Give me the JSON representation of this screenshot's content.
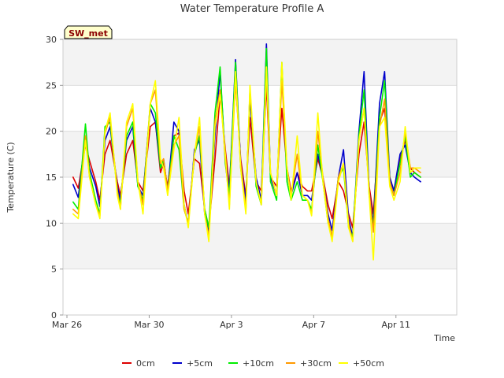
{
  "chart_data": {
    "type": "line",
    "title": "Water Temperature Profile A",
    "xlabel": "Time",
    "ylabel": "Temperature (C)",
    "badge": "SW_met",
    "x_domain_days": [
      0,
      18
    ],
    "x_ticks": [
      {
        "label": "Mar 26",
        "day": 0
      },
      {
        "label": "Mar 30",
        "day": 4
      },
      {
        "label": "Apr 3",
        "day": 8
      },
      {
        "label": "Apr 7",
        "day": 12
      },
      {
        "label": "Apr 11",
        "day": 16
      }
    ],
    "y_ticks": [
      0,
      5,
      10,
      15,
      20,
      25,
      30
    ],
    "ylim": [
      0,
      30
    ],
    "grid": "horizontal bands",
    "legend_position": "bottom",
    "series": [
      {
        "name": "0cm",
        "color": "#dd0000",
        "x": [
          0.3,
          0.55,
          0.9,
          1.1,
          1.4,
          1.6,
          1.85,
          2.1,
          2.45,
          2.6,
          2.9,
          3.2,
          3.45,
          3.7,
          4.05,
          4.3,
          4.55,
          4.7,
          4.9,
          5.2,
          5.45,
          5.7,
          5.9,
          6.2,
          6.45,
          6.7,
          6.9,
          7.2,
          7.45,
          7.7,
          7.9,
          8.2,
          8.45,
          8.7,
          8.9,
          9.2,
          9.45,
          9.7,
          9.9,
          10.2,
          10.45,
          10.7,
          10.9,
          11.2,
          11.45,
          11.7,
          11.9,
          12.2,
          12.45,
          12.7,
          12.9,
          13.2,
          13.45,
          13.7,
          13.9,
          14.2,
          14.45,
          14.7,
          14.9,
          15.2,
          15.45,
          15.7,
          15.9,
          16.2,
          16.45,
          16.7,
          16.9,
          17.2
        ],
        "y": [
          15.0,
          13.8,
          18.5,
          16.8,
          14.5,
          12.5,
          17.5,
          19.0,
          14.5,
          13.0,
          17.5,
          19.0,
          14.5,
          13.5,
          20.5,
          21.0,
          15.5,
          16.5,
          14.0,
          19.5,
          19.8,
          13.5,
          11.0,
          17.0,
          16.5,
          11.5,
          9.5,
          17.0,
          24.0,
          18.0,
          14.0,
          25.5,
          17.0,
          13.0,
          21.5,
          14.5,
          13.5,
          25.0,
          15.0,
          14.0,
          22.5,
          16.0,
          13.5,
          15.5,
          14.0,
          13.5,
          13.5,
          17.0,
          15.0,
          12.0,
          10.5,
          14.5,
          13.5,
          11.0,
          9.5,
          17.5,
          21.0,
          14.0,
          11.0,
          21.0,
          22.5,
          15.0,
          13.5,
          17.0,
          19.0,
          16.0,
          15.5,
          15.0
        ]
      },
      {
        "name": "+5cm",
        "color": "#0000cc",
        "x": [
          0.3,
          0.55,
          0.9,
          1.1,
          1.4,
          1.6,
          1.85,
          2.1,
          2.45,
          2.6,
          2.9,
          3.2,
          3.45,
          3.7,
          4.05,
          4.3,
          4.55,
          4.7,
          4.9,
          5.2,
          5.45,
          5.7,
          5.9,
          6.2,
          6.45,
          6.7,
          6.9,
          7.2,
          7.45,
          7.7,
          7.9,
          8.2,
          8.45,
          8.7,
          8.9,
          9.2,
          9.45,
          9.7,
          9.9,
          10.2,
          10.45,
          10.7,
          10.9,
          11.2,
          11.45,
          11.7,
          11.9,
          12.2,
          12.45,
          12.7,
          12.9,
          13.2,
          13.45,
          13.7,
          13.9,
          14.2,
          14.45,
          14.7,
          14.9,
          15.2,
          15.45,
          15.7,
          15.9,
          16.2,
          16.45,
          16.7,
          16.9,
          17.2
        ],
        "y": [
          14.2,
          12.8,
          19.5,
          16.0,
          14.0,
          11.8,
          19.0,
          20.5,
          14.0,
          12.5,
          19.0,
          20.5,
          14.0,
          13.0,
          22.5,
          21.0,
          16.0,
          17.0,
          13.5,
          21.0,
          20.0,
          12.0,
          9.8,
          18.0,
          19.0,
          11.0,
          9.0,
          19.5,
          26.5,
          17.0,
          13.5,
          27.8,
          16.5,
          12.5,
          23.5,
          15.0,
          12.5,
          29.5,
          15.0,
          13.0,
          27.0,
          15.5,
          13.0,
          15.5,
          13.0,
          13.0,
          12.5,
          17.5,
          15.0,
          11.0,
          9.2,
          15.0,
          18.0,
          10.5,
          8.5,
          20.0,
          26.5,
          13.5,
          10.0,
          23.0,
          26.5,
          15.0,
          13.5,
          17.5,
          18.5,
          15.5,
          15.0,
          14.5
        ]
      },
      {
        "name": "+10cm",
        "color": "#00ee00",
        "x": [
          0.3,
          0.55,
          0.9,
          1.1,
          1.4,
          1.6,
          1.85,
          2.1,
          2.45,
          2.6,
          2.9,
          3.2,
          3.45,
          3.7,
          4.05,
          4.3,
          4.55,
          4.7,
          4.9,
          5.2,
          5.45,
          5.7,
          5.9,
          6.2,
          6.45,
          6.7,
          6.9,
          7.2,
          7.45,
          7.7,
          7.9,
          8.2,
          8.45,
          8.7,
          8.9,
          9.2,
          9.45,
          9.7,
          9.9,
          10.2,
          10.45,
          10.7,
          10.9,
          11.2,
          11.45,
          11.7,
          11.9,
          12.2,
          12.45,
          12.7,
          12.9,
          13.2,
          13.45,
          13.7,
          13.9,
          14.2,
          14.45,
          14.7,
          14.9,
          15.2,
          15.45,
          15.7,
          15.9,
          16.2,
          16.45,
          16.7,
          16.9,
          17.2
        ],
        "y": [
          12.3,
          11.5,
          20.8,
          15.5,
          12.5,
          11.0,
          20.5,
          21.0,
          13.5,
          12.0,
          19.5,
          21.0,
          14.0,
          12.5,
          23.0,
          22.0,
          16.0,
          16.8,
          13.5,
          19.5,
          18.0,
          11.5,
          10.0,
          17.5,
          19.5,
          11.5,
          9.5,
          22.0,
          27.0,
          16.5,
          13.0,
          27.5,
          16.0,
          11.5,
          24.5,
          14.0,
          12.0,
          29.0,
          14.5,
          12.5,
          27.5,
          14.5,
          12.5,
          14.5,
          12.5,
          12.5,
          11.5,
          18.5,
          14.5,
          10.0,
          8.5,
          15.0,
          16.0,
          9.5,
          8.5,
          19.5,
          24.5,
          13.0,
          9.5,
          21.5,
          25.5,
          14.5,
          13.0,
          16.5,
          19.5,
          15.0,
          15.5,
          15.0
        ]
      },
      {
        "name": "+30cm",
        "color": "#ff9900",
        "x": [
          0.3,
          0.55,
          0.9,
          1.1,
          1.4,
          1.6,
          1.85,
          2.1,
          2.45,
          2.6,
          2.9,
          3.2,
          3.45,
          3.7,
          4.05,
          4.3,
          4.55,
          4.7,
          4.9,
          5.2,
          5.45,
          5.7,
          5.9,
          6.2,
          6.45,
          6.7,
          6.9,
          7.2,
          7.45,
          7.7,
          7.9,
          8.2,
          8.45,
          8.7,
          8.9,
          9.2,
          9.45,
          9.7,
          9.9,
          10.2,
          10.45,
          10.7,
          10.9,
          11.2,
          11.45,
          11.7,
          11.9,
          12.2,
          12.45,
          12.7,
          12.9,
          13.2,
          13.45,
          13.7,
          13.9,
          14.2,
          14.45,
          14.7,
          14.9,
          15.2,
          15.45,
          15.7,
          15.9,
          16.2,
          16.45,
          16.7,
          16.9,
          17.2
        ],
        "y": [
          11.5,
          11.0,
          19.5,
          15.0,
          12.0,
          10.8,
          19.8,
          21.5,
          13.5,
          11.5,
          20.5,
          22.5,
          14.5,
          12.0,
          23.0,
          24.5,
          16.5,
          17.0,
          13.5,
          18.5,
          19.5,
          11.5,
          10.0,
          17.5,
          20.5,
          11.0,
          8.5,
          21.0,
          24.5,
          17.0,
          12.0,
          25.5,
          16.5,
          11.5,
          24.5,
          14.5,
          12.0,
          26.0,
          15.5,
          13.0,
          25.5,
          16.0,
          13.0,
          17.5,
          13.0,
          12.5,
          11.0,
          20.0,
          15.0,
          10.5,
          8.5,
          15.0,
          16.5,
          10.0,
          8.0,
          19.0,
          22.5,
          13.5,
          9.0,
          20.5,
          23.5,
          14.5,
          13.0,
          15.5,
          20.0,
          16.0,
          16.0,
          15.5
        ]
      },
      {
        "name": "+50cm",
        "color": "#ffff00",
        "x": [
          0.3,
          0.55,
          0.9,
          1.1,
          1.4,
          1.6,
          1.85,
          2.1,
          2.45,
          2.6,
          2.9,
          3.2,
          3.45,
          3.7,
          4.05,
          4.3,
          4.55,
          4.7,
          4.9,
          5.2,
          5.45,
          5.7,
          5.9,
          6.2,
          6.45,
          6.7,
          6.9,
          7.2,
          7.45,
          7.7,
          7.9,
          8.2,
          8.45,
          8.7,
          8.9,
          9.2,
          9.45,
          9.7,
          9.9,
          10.2,
          10.45,
          10.7,
          10.9,
          11.2,
          11.45,
          11.7,
          11.9,
          12.2,
          12.45,
          12.7,
          12.9,
          13.2,
          13.45,
          13.7,
          13.9,
          14.2,
          14.45,
          14.7,
          14.9,
          15.2,
          15.45,
          15.7,
          15.9,
          16.2,
          16.45,
          16.7,
          16.9,
          17.2
        ],
        "y": [
          11.0,
          10.5,
          19.0,
          15.0,
          12.0,
          10.5,
          20.0,
          22.0,
          13.0,
          11.5,
          21.0,
          23.0,
          14.5,
          11.0,
          23.0,
          25.5,
          17.0,
          16.0,
          13.0,
          18.0,
          21.5,
          12.0,
          9.5,
          17.5,
          21.5,
          11.0,
          8.0,
          20.5,
          24.0,
          17.5,
          11.5,
          26.5,
          16.0,
          11.0,
          25.0,
          14.5,
          12.0,
          27.0,
          15.5,
          13.0,
          27.5,
          16.0,
          12.5,
          19.5,
          13.0,
          12.5,
          10.8,
          22.0,
          14.5,
          10.0,
          8.0,
          14.5,
          16.5,
          9.5,
          8.0,
          19.0,
          22.5,
          13.0,
          6.0,
          20.5,
          21.5,
          14.0,
          12.5,
          14.5,
          20.5,
          15.5,
          16.0,
          16.0
        ]
      }
    ]
  }
}
